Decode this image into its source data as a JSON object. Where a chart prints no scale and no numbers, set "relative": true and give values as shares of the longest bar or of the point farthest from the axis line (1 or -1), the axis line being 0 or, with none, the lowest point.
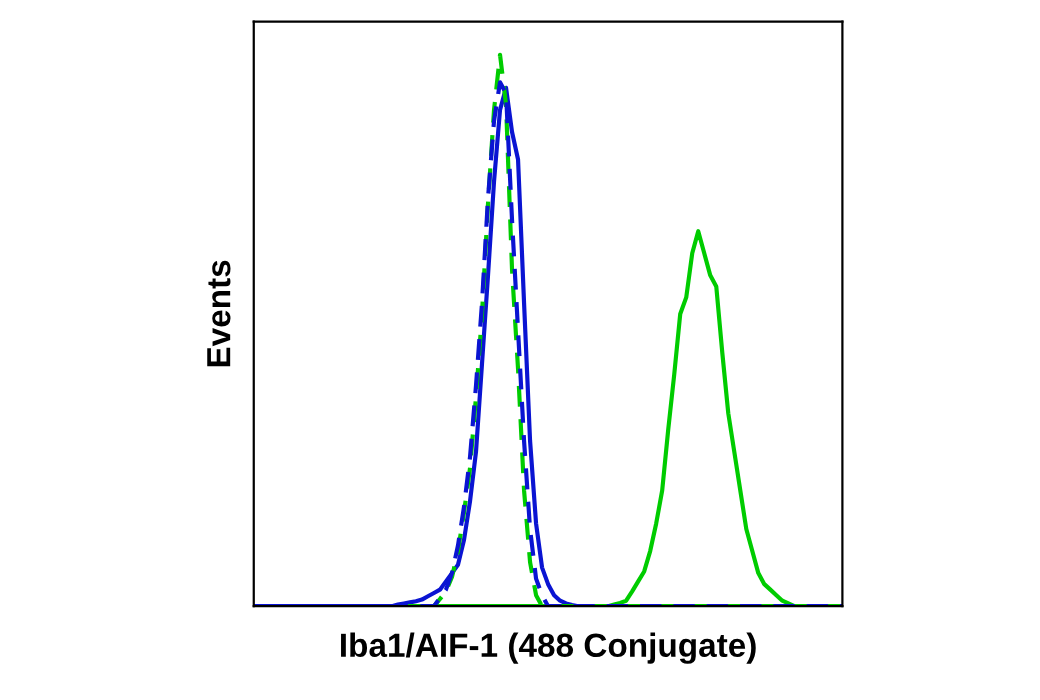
{
  "chart_data": {
    "type": "line",
    "relative": true,
    "xlabel": "Iba1/AIF-1 (488 Conjugate)",
    "ylabel": "Events",
    "grid": false,
    "legend": false,
    "marker": "none",
    "categories": [
      null,
      null,
      null,
      null,
      null,
      null,
      null,
      null,
      null,
      null,
      null,
      null,
      null,
      null,
      null,
      null,
      null,
      null,
      null,
      null,
      null,
      null,
      null,
      null,
      null,
      null,
      null,
      null,
      null,
      null,
      null,
      null,
      null,
      null,
      null,
      null,
      null,
      null,
      null,
      null,
      null,
      null,
      null,
      null,
      null,
      null,
      null,
      null,
      null,
      null,
      null,
      null,
      null,
      null,
      null,
      null,
      null,
      null,
      null,
      null,
      null,
      null,
      null,
      null,
      null,
      null,
      null,
      null,
      null,
      null,
      null,
      null,
      null,
      null,
      null,
      null,
      null,
      null,
      null,
      null,
      null,
      null,
      null,
      null,
      null,
      null,
      null,
      null,
      null,
      null,
      null,
      null,
      null,
      null,
      null,
      null,
      null,
      null,
      null
    ],
    "series": [
      {
        "color": "#00cc00",
        "line_style": "solid",
        "values": [
          null,
          null,
          null,
          null,
          null,
          null,
          null,
          null,
          null,
          null,
          null,
          null,
          null,
          null,
          null,
          null,
          null,
          null,
          null,
          null,
          null,
          null,
          null,
          null,
          0,
          0,
          0,
          0,
          0,
          0,
          0,
          0,
          0,
          0,
          0,
          0,
          0,
          0,
          0,
          0,
          0,
          0,
          0,
          0,
          0,
          0,
          0,
          0,
          0,
          0,
          0,
          0,
          0,
          0,
          0,
          0,
          0,
          0,
          0,
          0,
          0.003,
          0.006,
          0.01,
          0.027,
          0.045,
          0.063,
          0.1,
          0.15,
          0.21,
          0.32,
          0.42,
          0.53,
          0.56,
          0.64,
          0.68,
          0.64,
          0.6,
          0.58,
          0.46,
          0.35,
          0.28,
          0.21,
          0.14,
          0.1,
          0.06,
          0.04,
          0.03,
          0.02,
          0.01,
          0.005,
          0,
          0,
          0,
          0,
          0,
          0,
          0,
          0,
          0
        ]
      },
      {
        "color": "#0a14d2",
        "line_style": "solid",
        "values": [
          0,
          0,
          0,
          0,
          0,
          0,
          0,
          0,
          0,
          0,
          0,
          0,
          0,
          0,
          0,
          0,
          0,
          0,
          0,
          0,
          0,
          0,
          0,
          0,
          0.003,
          0.005,
          0.007,
          0.009,
          0.012,
          0.018,
          0.024,
          0.03,
          0.045,
          0.06,
          0.075,
          0.12,
          0.19,
          0.28,
          0.44,
          0.6,
          0.77,
          0.9,
          0.94,
          0.86,
          0.81,
          0.55,
          0.3,
          0.15,
          0.07,
          0.04,
          0.02,
          0.01,
          0.005,
          0.002,
          0,
          0,
          0,
          0,
          0,
          0,
          0,
          0,
          0,
          0,
          0,
          0,
          0,
          0,
          0,
          0,
          0,
          0,
          0,
          0,
          0,
          0,
          0,
          0,
          0,
          0,
          0,
          0,
          0,
          0,
          0,
          0,
          0,
          0,
          0,
          0,
          0,
          0,
          0,
          0,
          0,
          0,
          0,
          0,
          0
        ]
      },
      {
        "color": "#00cc00",
        "line_style": "dashed",
        "values": [
          null,
          null,
          null,
          null,
          null,
          null,
          null,
          null,
          null,
          null,
          null,
          null,
          null,
          null,
          null,
          null,
          null,
          null,
          null,
          null,
          null,
          null,
          null,
          0,
          0,
          0,
          0,
          0,
          0,
          0,
          0,
          0.013,
          0.027,
          0.053,
          0.1,
          0.17,
          0.25,
          0.38,
          0.53,
          0.73,
          0.9,
          1,
          0.91,
          0.61,
          0.43,
          0.21,
          0.08,
          0.02,
          0,
          0,
          0,
          0,
          0,
          0,
          0,
          0,
          0,
          0,
          0,
          0,
          0,
          0,
          0,
          0,
          0,
          0,
          0,
          0,
          0,
          0,
          0,
          0,
          0,
          0,
          0,
          0,
          0,
          0,
          0,
          0,
          0,
          0,
          0,
          0,
          0,
          0,
          0,
          0,
          0,
          0,
          0,
          0,
          0,
          0,
          0,
          0,
          0,
          0,
          0
        ]
      },
      {
        "color": "#0a14d2",
        "line_style": "dashed",
        "values": [
          0,
          0,
          0,
          0,
          0,
          0,
          0,
          0,
          0,
          0,
          0,
          0,
          0,
          0,
          0,
          0,
          0,
          0,
          0,
          0,
          0,
          0,
          0,
          0,
          0,
          0,
          0,
          0,
          0,
          0,
          0,
          0.015,
          0.03,
          0.06,
          0.11,
          0.18,
          0.27,
          0.4,
          0.55,
          0.74,
          0.88,
          0.95,
          0.93,
          0.7,
          0.5,
          0.3,
          0.14,
          0.05,
          0.02,
          0,
          0,
          0,
          0,
          0,
          0,
          0,
          0,
          0,
          0,
          0,
          0,
          0,
          0,
          0,
          0,
          0,
          0,
          0,
          0,
          0,
          0,
          0,
          0,
          0,
          0,
          0,
          0,
          0,
          0,
          0,
          0,
          0,
          0,
          0,
          0,
          0,
          0,
          0,
          0,
          0,
          0,
          0,
          0,
          0,
          0,
          0,
          0,
          0,
          0
        ]
      }
    ]
  }
}
